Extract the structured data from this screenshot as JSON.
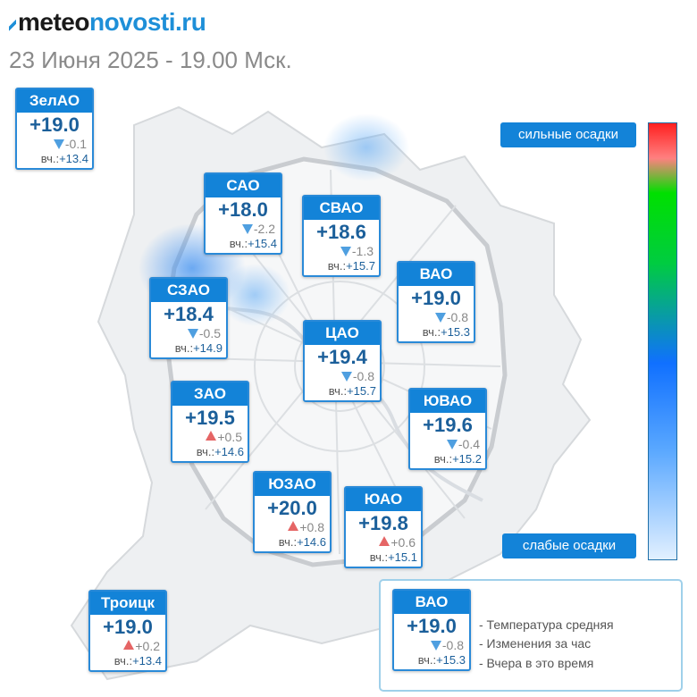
{
  "header": {
    "logo_part1": "meteo",
    "logo_part2": "novosti.ru",
    "date": "23 Июня 2025 - 19.00 Мск."
  },
  "districts": [
    {
      "name": "ЗелАО",
      "temp": "+19.0",
      "dir": "down",
      "change": "-0.1",
      "yest_label": "вч.:",
      "yest": "+13.4"
    },
    {
      "name": "САО",
      "temp": "+18.0",
      "dir": "down",
      "change": "-2.2",
      "yest_label": "вч.:",
      "yest": "+15.4"
    },
    {
      "name": "СВАО",
      "temp": "+18.6",
      "dir": "down",
      "change": "-1.3",
      "yest_label": "вч.:",
      "yest": "+15.7"
    },
    {
      "name": "ВАО",
      "temp": "+19.0",
      "dir": "down",
      "change": "-0.8",
      "yest_label": "вч.:",
      "yest": "+15.3"
    },
    {
      "name": "СЗАО",
      "temp": "+18.4",
      "dir": "down",
      "change": "-0.5",
      "yest_label": "вч.:",
      "yest": "+14.9"
    },
    {
      "name": "ЦАО",
      "temp": "+19.4",
      "dir": "down",
      "change": "-0.8",
      "yest_label": "вч.:",
      "yest": "+15.7"
    },
    {
      "name": "ЗАО",
      "temp": "+19.5",
      "dir": "up",
      "change": "+0.5",
      "yest_label": "вч.:",
      "yest": "+14.6"
    },
    {
      "name": "ЮВАО",
      "temp": "+19.6",
      "dir": "down",
      "change": "-0.4",
      "yest_label": "вч.:",
      "yest": "+15.2"
    },
    {
      "name": "ЮЗАО",
      "temp": "+20.0",
      "dir": "up",
      "change": "+0.8",
      "yest_label": "вч.:",
      "yest": "+14.6"
    },
    {
      "name": "ЮАО",
      "temp": "+19.8",
      "dir": "up",
      "change": "+0.6",
      "yest_label": "вч.:",
      "yest": "+15.1"
    },
    {
      "name": "Троицк",
      "temp": "+19.0",
      "dir": "up",
      "change": "+0.2",
      "yest_label": "вч.:",
      "yest": "+13.4"
    }
  ],
  "scale": {
    "top_label": "сильные осадки",
    "bottom_label": "слабые осадки"
  },
  "legend": {
    "name": "ВАО",
    "temp": "+19.0",
    "dir": "down",
    "change": "-0.8",
    "yest_label": "вч.:",
    "yest": "+15.3",
    "line1": "- Температура средняя",
    "line2": "- Изменения за час",
    "line3": "- Вчера в это время"
  },
  "colors": {
    "accent": "#1383d8",
    "temp_text": "#1b5f9a",
    "arrow_down": "#4f9fe0",
    "arrow_up": "#e56565"
  }
}
